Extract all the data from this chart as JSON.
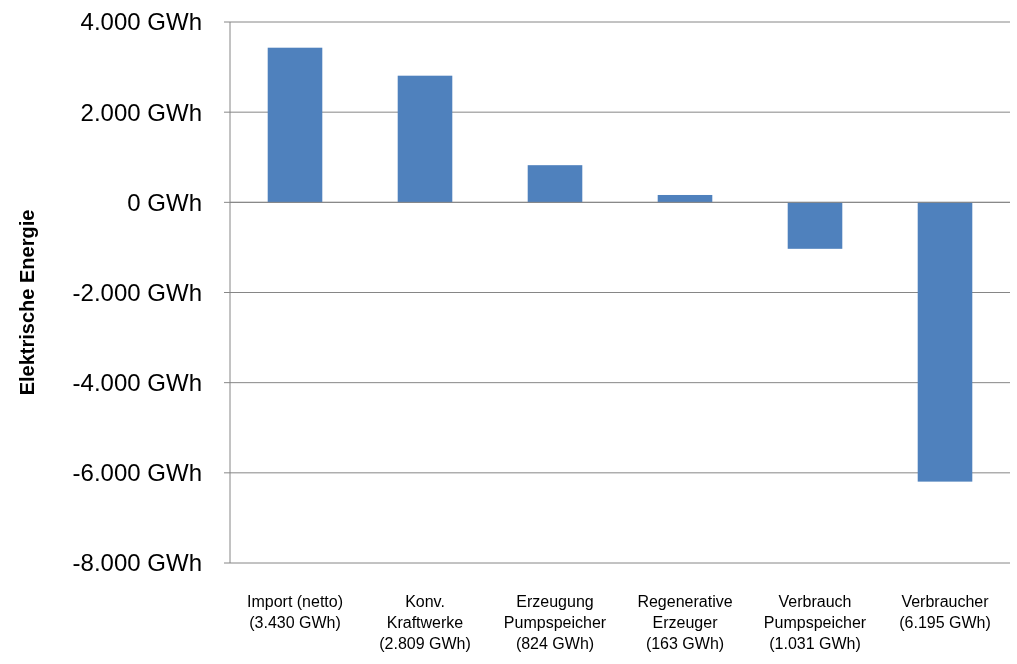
{
  "chart_data": {
    "type": "bar",
    "ylabel": "Elektrische Energie",
    "categories": [
      "Import (netto)\n(3.430 GWh)",
      "Konv.\nKraftwerke\n(2.809 GWh)",
      "Erzeugung\nPumpspeicher\n(824 GWh)",
      "Regenerative\nErzeuger\n(163 GWh)",
      "Verbrauch\nPumpspeicher\n(1.031 GWh)",
      "Verbraucher\n(6.195 GWh)"
    ],
    "values": [
      3430,
      2809,
      824,
      163,
      -1031,
      -6195
    ],
    "color": "#4f81bd",
    "ylim": [
      -8000,
      4000
    ],
    "yticks": [
      {
        "value": -8000,
        "label": "-8.000 GWh"
      },
      {
        "value": -6000,
        "label": "-6.000 GWh"
      },
      {
        "value": -4000,
        "label": "-4.000 GWh"
      },
      {
        "value": -2000,
        "label": "-2.000 GWh"
      },
      {
        "value": 0,
        "label": "0 GWh"
      },
      {
        "value": 2000,
        "label": "2.000 GWh"
      },
      {
        "value": 4000,
        "label": "4.000 GWh"
      }
    ],
    "grid": "y"
  }
}
